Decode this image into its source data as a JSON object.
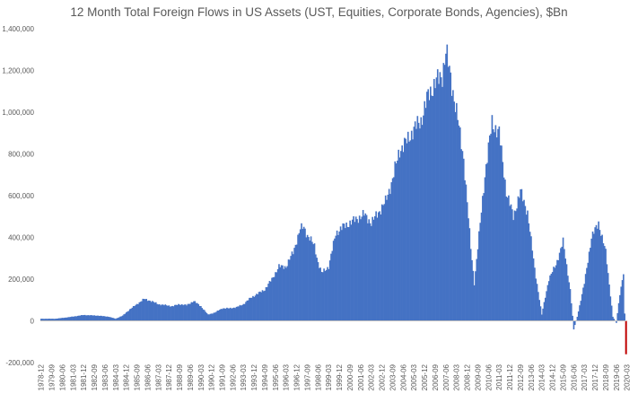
{
  "chart_data": {
    "type": "bar",
    "title": "12 Month Total Foreign Flows in US Assets (UST, Equities, Corporate Bonds, Agencies), $Bn",
    "xlabel": "",
    "ylabel": "",
    "ylim": [
      -200000,
      1400000
    ],
    "yticks": [
      -200000,
      0,
      200000,
      400000,
      600000,
      800000,
      1000000,
      1200000,
      1400000
    ],
    "ytick_labels": [
      "-200,000",
      "0",
      "200,000",
      "400,000",
      "600,000",
      "800,000",
      "1,000,000",
      "1,200,000",
      "1,400,000"
    ],
    "x_start": "1978-12",
    "x_end": "2020-02",
    "x_tick_step_months": 9,
    "grid": false,
    "legend": "none",
    "colors": {
      "bars": "#4472c4",
      "highlight": "#c00000",
      "axis": "#d9d9d9",
      "text": "#595959"
    },
    "highlight_last": true,
    "anchors": [
      [
        "1978-12",
        10000
      ],
      [
        "1979-12",
        10000
      ],
      [
        "1980-12",
        18000
      ],
      [
        "1981-12",
        28000
      ],
      [
        "1982-12",
        25000
      ],
      [
        "1983-09",
        20000
      ],
      [
        "1984-03",
        10000
      ],
      [
        "1984-09",
        25000
      ],
      [
        "1985-03",
        55000
      ],
      [
        "1985-09",
        80000
      ],
      [
        "1986-03",
        105000
      ],
      [
        "1986-09",
        95000
      ],
      [
        "1987-03",
        80000
      ],
      [
        "1987-09",
        75000
      ],
      [
        "1988-03",
        70000
      ],
      [
        "1988-09",
        80000
      ],
      [
        "1989-03",
        75000
      ],
      [
        "1989-09",
        95000
      ],
      [
        "1990-03",
        70000
      ],
      [
        "1990-09",
        30000
      ],
      [
        "1991-03",
        40000
      ],
      [
        "1991-09",
        60000
      ],
      [
        "1992-03",
        60000
      ],
      [
        "1992-09",
        65000
      ],
      [
        "1993-03",
        80000
      ],
      [
        "1993-09",
        110000
      ],
      [
        "1994-03",
        130000
      ],
      [
        "1994-09",
        150000
      ],
      [
        "1995-03",
        200000
      ],
      [
        "1995-09",
        260000
      ],
      [
        "1996-03",
        260000
      ],
      [
        "1996-09",
        330000
      ],
      [
        "1997-03",
        440000
      ],
      [
        "1997-06",
        450000
      ],
      [
        "1997-09",
        410000
      ],
      [
        "1998-03",
        360000
      ],
      [
        "1998-06",
        280000
      ],
      [
        "1998-09",
        230000
      ],
      [
        "1999-03",
        260000
      ],
      [
        "1999-09",
        420000
      ],
      [
        "2000-03",
        450000
      ],
      [
        "2000-09",
        470000
      ],
      [
        "2001-03",
        490000
      ],
      [
        "2001-09",
        510000
      ],
      [
        "2002-03",
        470000
      ],
      [
        "2002-09",
        520000
      ],
      [
        "2003-03",
        570000
      ],
      [
        "2003-09",
        680000
      ],
      [
        "2004-03",
        820000
      ],
      [
        "2004-09",
        860000
      ],
      [
        "2005-03",
        920000
      ],
      [
        "2005-09",
        960000
      ],
      [
        "2006-03",
        1080000
      ],
      [
        "2006-09",
        1140000
      ],
      [
        "2007-03",
        1180000
      ],
      [
        "2007-06",
        1290000
      ],
      [
        "2007-09",
        1200000
      ],
      [
        "2008-03",
        1000000
      ],
      [
        "2008-09",
        780000
      ],
      [
        "2009-03",
        350000
      ],
      [
        "2009-06",
        180000
      ],
      [
        "2009-09",
        350000
      ],
      [
        "2010-03",
        700000
      ],
      [
        "2010-09",
        950000
      ],
      [
        "2011-03",
        900000
      ],
      [
        "2011-09",
        620000
      ],
      [
        "2012-03",
        500000
      ],
      [
        "2012-09",
        620000
      ],
      [
        "2013-03",
        520000
      ],
      [
        "2013-09",
        250000
      ],
      [
        "2014-03",
        30000
      ],
      [
        "2014-09",
        200000
      ],
      [
        "2015-03",
        270000
      ],
      [
        "2015-09",
        380000
      ],
      [
        "2016-03",
        150000
      ],
      [
        "2016-06",
        -40000
      ],
      [
        "2016-09",
        20000
      ],
      [
        "2017-03",
        180000
      ],
      [
        "2017-09",
        400000
      ],
      [
        "2018-03",
        470000
      ],
      [
        "2018-09",
        330000
      ],
      [
        "2019-03",
        20000
      ],
      [
        "2019-06",
        -10000
      ],
      [
        "2019-09",
        130000
      ],
      [
        "2019-12",
        230000
      ],
      [
        "2020-02",
        -160000
      ]
    ],
    "tick_labels": [
      "1978-12",
      "1979-09",
      "1980-06",
      "1981-03",
      "1981-12",
      "1982-09",
      "1983-06",
      "1984-03",
      "1984-12",
      "1985-09",
      "1986-06",
      "1987-03",
      "1987-12",
      "1988-09",
      "1989-06",
      "1990-03",
      "1990-12",
      "1991-09",
      "1992-06",
      "1993-03",
      "1993-12",
      "1994-09",
      "1995-06",
      "1996-03",
      "1996-12",
      "1997-09",
      "1998-06",
      "1999-03",
      "1999-12",
      "2000-09",
      "2001-06",
      "2002-03",
      "2002-12",
      "2003-09",
      "2004-06",
      "2005-03",
      "2005-12",
      "2006-09",
      "2007-06",
      "2008-03",
      "2008-12",
      "2009-09",
      "2010-06",
      "2011-03",
      "2011-12",
      "2012-09",
      "2013-06",
      "2014-03",
      "2014-12",
      "2015-09",
      "2016-06",
      "2017-03",
      "2017-12",
      "2018-09",
      "2019-06",
      "2020-03"
    ]
  }
}
